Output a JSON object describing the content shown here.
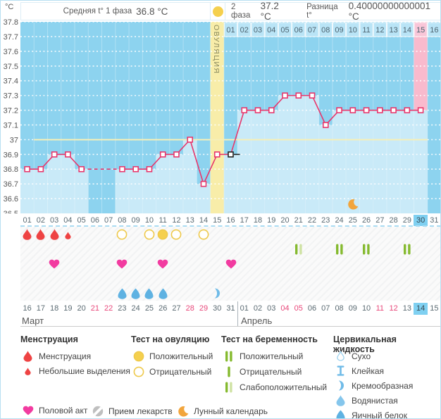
{
  "header": {
    "unit": "°C",
    "phase1_label": "Средняя t° 1 фаза",
    "phase1_value": "36.8 °C",
    "phase2_label": "2 фаза",
    "phase2_value": "37.2 °C",
    "diff_label": "Разница t°",
    "diff_value": "0.40000000000001 °C"
  },
  "chart_data": {
    "type": "line",
    "ylabel": "°C",
    "ylim": [
      36.5,
      37.8
    ],
    "y_ticks": [
      "37.8",
      "37.7",
      "37.6",
      "37.5",
      "37.4",
      "37.3",
      "37.2",
      "37.1",
      "37",
      "36.9",
      "36.8",
      "36.7",
      "36.6",
      "36.5"
    ],
    "days": [
      "01",
      "02",
      "03",
      "04",
      "05",
      "06",
      "07",
      "08",
      "09",
      "10",
      "11",
      "12",
      "13",
      "14",
      "15",
      "16",
      "17",
      "18",
      "19",
      "20",
      "21",
      "22",
      "23",
      "24",
      "25",
      "26",
      "27",
      "28",
      "29",
      "30",
      "31"
    ],
    "temperatures": [
      36.8,
      36.8,
      36.9,
      36.9,
      36.8,
      null,
      null,
      36.8,
      36.8,
      36.8,
      36.9,
      36.9,
      37.0,
      36.7,
      36.9,
      36.9,
      37.2,
      37.2,
      37.2,
      37.3,
      37.3,
      37.3,
      37.1,
      37.2,
      37.2,
      37.2,
      37.2,
      37.2,
      37.2,
      37.2,
      null
    ],
    "coverline": 37.0,
    "ovulation_day": 15,
    "ovulation_label": "ОВУЛЯЦИЯ",
    "phase2_day_labels": [
      "01",
      "02",
      "03",
      "04",
      "05",
      "06",
      "07",
      "08",
      "09",
      "10",
      "11",
      "12",
      "13",
      "14",
      "15",
      "16"
    ],
    "phase2_highlight_label": "15",
    "highlight_cycle_day": 30,
    "selected_day": 16,
    "moon_day": 25,
    "legend_position": "bottom",
    "grid": true
  },
  "rows": {
    "cycle_days": [
      "01",
      "02",
      "03",
      "04",
      "05",
      "06",
      "07",
      "08",
      "09",
      "10",
      "11",
      "12",
      "13",
      "14",
      "15",
      "16",
      "17",
      "18",
      "19",
      "20",
      "21",
      "22",
      "23",
      "24",
      "25",
      "26",
      "27",
      "28",
      "29",
      "30",
      "31"
    ],
    "highlight_cycle_day": 30,
    "menstruation": {
      "1": "full",
      "2": "full",
      "3": "full",
      "4": "small"
    },
    "ovulation_tests": {
      "8": "negative",
      "10": "negative",
      "11": "positive",
      "12": "negative",
      "14": "negative"
    },
    "pregnancy_tests": {
      "21": "weak",
      "24": "positive",
      "26": "positive",
      "29": "positive"
    },
    "intercourse_days": [
      3,
      8,
      11,
      16
    ],
    "cervical_fluid": {
      "8": "eggwhite",
      "9": "eggwhite",
      "10": "eggwhite",
      "11": "eggwhite",
      "15": "creamy"
    },
    "dates": {
      "march": {
        "label": "Март",
        "days": [
          "16",
          "17",
          "18",
          "19",
          "20",
          "21",
          "22",
          "23",
          "24",
          "25",
          "26",
          "27",
          "28",
          "29",
          "30",
          "31"
        ],
        "weekend": [
          "21",
          "22",
          "28",
          "29"
        ]
      },
      "april": {
        "label": "Апрель",
        "days": [
          "01",
          "02",
          "03",
          "04",
          "05",
          "06",
          "07",
          "08",
          "09",
          "10",
          "11",
          "12",
          "13",
          "14",
          "15"
        ],
        "weekend": [
          "04",
          "05",
          "11",
          "12"
        ],
        "today": "14"
      }
    }
  },
  "legend": {
    "sections": [
      {
        "title": "Менструация",
        "items": [
          {
            "icon": "drop",
            "label": "Менструация"
          },
          {
            "icon": "drop-small",
            "label": "Небольшие выделения"
          }
        ]
      },
      {
        "title": "Тест на овуляцию",
        "items": [
          {
            "icon": "circle-filled",
            "label": "Положительный"
          },
          {
            "icon": "circle-outline",
            "label": "Отрицательный"
          }
        ]
      },
      {
        "title": "Тест на беременность",
        "items": [
          {
            "icon": "bars-positive",
            "label": "Положительный"
          },
          {
            "icon": "bar-negative",
            "label": "Отрицательный"
          },
          {
            "icon": "bars-weak",
            "label": "Слабоположительный"
          }
        ]
      },
      {
        "title": "Цервикальная жидкость",
        "items": [
          {
            "icon": "fluid-dry",
            "label": "Сухо"
          },
          {
            "icon": "fluid-sticky",
            "label": "Клейкая"
          },
          {
            "icon": "fluid-creamy",
            "label": "Кремообразная"
          },
          {
            "icon": "fluid-watery",
            "label": "Водянистая"
          },
          {
            "icon": "fluid-eggwhite",
            "label": "Яичный белок"
          }
        ]
      }
    ],
    "footer_items": [
      {
        "icon": "heart",
        "label": "Половой акт"
      },
      {
        "icon": "pill",
        "label": "Прием лекарств"
      },
      {
        "icon": "moon",
        "label": "Лунный календарь"
      }
    ]
  },
  "colors": {
    "line": "#e8366b",
    "selected_marker": "#222222",
    "coverline": "#f4efb9",
    "plot_bg": "#8dd3ef",
    "column_bar": "#c9eaf8",
    "label_strip": "#b9e4f6",
    "ovulation_column": "#f8eda9",
    "ovulation_text": "#8a8a5e",
    "phase2_highlight": "#f9bacd",
    "phase2_highlight_label": "#f9c6d8",
    "today_highlight": "#7fd0f1",
    "menstruation_red": "#ee4343",
    "test_yellow": "#f5d04e",
    "test_yellow_stroke": "#eec94b",
    "heart_pink": "#f23ba0",
    "pregnancy_green": "#85ba2f",
    "pregnancy_weak": "#cfe2a3",
    "fluid_blue": "#6fbbe8",
    "fluid_light": "#85c6ec",
    "fluid_dark": "#5fb2e2",
    "fluid_outline": "#9fd4f0",
    "moon_orange": "#f2a53c",
    "pill_gray": "#bfbfbf",
    "weekend_red": "#e8477a",
    "text": "#555555"
  }
}
